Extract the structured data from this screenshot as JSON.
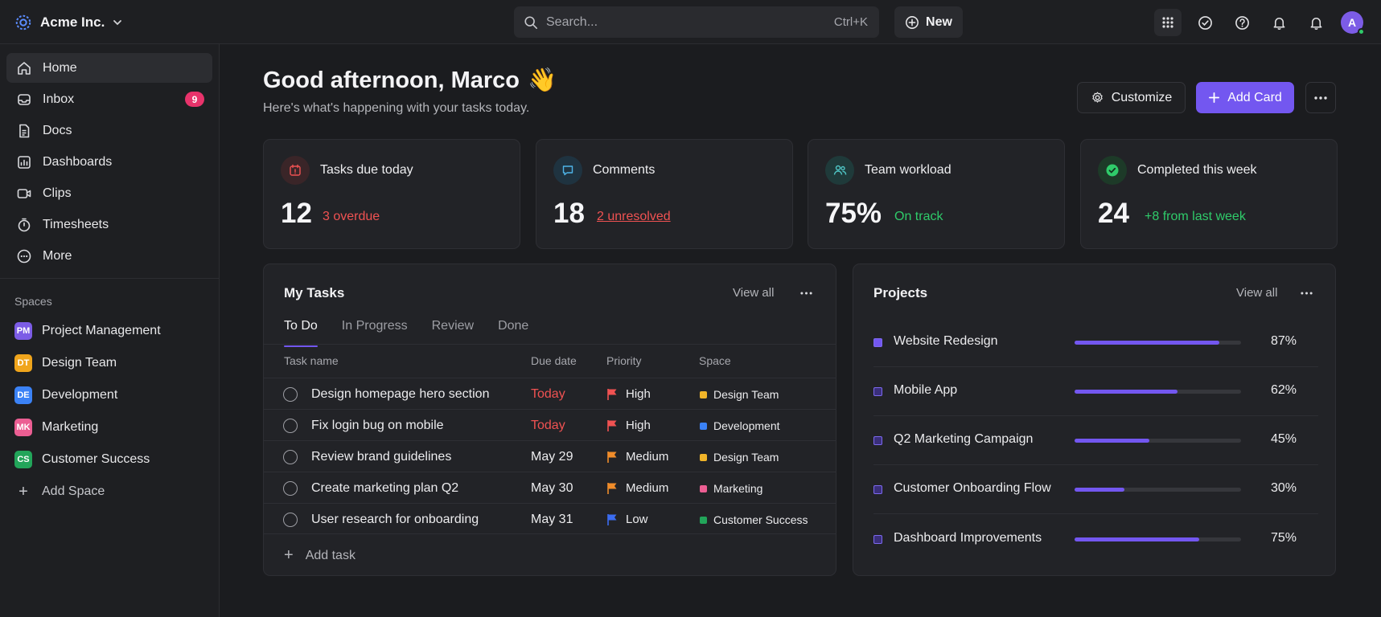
{
  "topbar": {
    "org_name": "Acme Inc.",
    "search_placeholder": "Search...",
    "search_shortcut": "Ctrl+K",
    "new_label": "New",
    "avatar_initial": "A"
  },
  "sidebar": {
    "items": [
      {
        "label": "Home",
        "icon": "home-icon"
      },
      {
        "label": "Inbox",
        "icon": "inbox-icon",
        "badge": "9"
      },
      {
        "label": "Docs",
        "icon": "document-icon"
      },
      {
        "label": "Dashboards",
        "icon": "dashboard-icon"
      },
      {
        "label": "Clips",
        "icon": "video-clip-icon"
      },
      {
        "label": "Timesheets",
        "icon": "stopwatch-icon"
      },
      {
        "label": "More",
        "icon": "more-circle-icon"
      }
    ],
    "spaces_heading": "Spaces",
    "spaces": [
      {
        "abbr": "PM",
        "label": "Project Management",
        "color": "#7c5ce6"
      },
      {
        "abbr": "DT",
        "label": "Design Team",
        "color": "#f0a51c"
      },
      {
        "abbr": "DE",
        "label": "Development",
        "color": "#3b82f6"
      },
      {
        "abbr": "MK",
        "label": "Marketing",
        "color": "#ec5e93"
      },
      {
        "abbr": "CS",
        "label": "Customer Success",
        "color": "#22a55a"
      }
    ],
    "add_space_label": "Add Space"
  },
  "header": {
    "greeting": "Good afternoon, Marco",
    "greeting_emoji": "👋",
    "subtitle": "Here's what's happening with your tasks today.",
    "customize_label": "Customize",
    "add_card_label": "Add Card"
  },
  "stats": [
    {
      "title": "Tasks due today",
      "value": "12",
      "note": "3 overdue",
      "note_color": "#f05252",
      "icon": "calendar-alert-icon"
    },
    {
      "title": "Comments",
      "value": "18",
      "note": "2 unresolved",
      "note_color": "#f05252",
      "icon": "comment-icon"
    },
    {
      "title": "Team workload",
      "value": "75%",
      "note": "On track",
      "note_color": "#2fcb6a",
      "icon": "team-icon"
    },
    {
      "title": "Completed this week",
      "value": "24",
      "note": "+8 from last week",
      "note_color": "#2fcb6a",
      "icon": "check-circle-icon"
    }
  ],
  "my_tasks": {
    "title": "My Tasks",
    "view_all": "View all",
    "tabs": [
      "To Do",
      "In Progress",
      "Review",
      "Done"
    ],
    "active_tab": "To Do",
    "columns": [
      "Task name",
      "Due date",
      "Priority",
      "Space"
    ],
    "rows": [
      {
        "name": "Design homepage hero section",
        "due": "Today",
        "priority": "High",
        "flag_color": "#f05252",
        "space": "Design Team",
        "space_color": "#f0b429"
      },
      {
        "name": "Fix login bug on mobile",
        "due": "Today",
        "priority": "High",
        "flag_color": "#f05252",
        "space": "Development",
        "space_color": "#3b82f6"
      },
      {
        "name": "Review brand guidelines",
        "due": "May 29",
        "priority": "Medium",
        "flag_color": "#f08c2a",
        "space": "Design Team",
        "space_color": "#f0b429"
      },
      {
        "name": "Create marketing plan Q2",
        "due": "May 30",
        "priority": "Medium",
        "flag_color": "#f08c2a",
        "space": "Marketing",
        "space_color": "#ec5e93"
      },
      {
        "name": "User research for onboarding",
        "due": "May 31",
        "priority": "Low",
        "flag_color": "#3b6cf0",
        "space": "Customer Success",
        "space_color": "#22a55a"
      }
    ],
    "add_task_label": "Add task"
  },
  "projects": {
    "title": "Projects",
    "view_all": "View all",
    "items": [
      {
        "name": "Website Redesign",
        "progress": 0.87,
        "label": "87%"
      },
      {
        "name": "Mobile App",
        "progress": 0.62,
        "label": "62%"
      },
      {
        "name": "Q2 Marketing Campaign",
        "progress": 0.45,
        "label": "45%"
      },
      {
        "name": "Customer Onboarding Flow",
        "progress": 0.3,
        "label": "30%"
      },
      {
        "name": "Dashboard Improvements",
        "progress": 0.75,
        "label": "75%"
      }
    ]
  },
  "colors": {
    "accent": "#7357f0",
    "danger": "#f05252",
    "success": "#2fcb6a"
  }
}
